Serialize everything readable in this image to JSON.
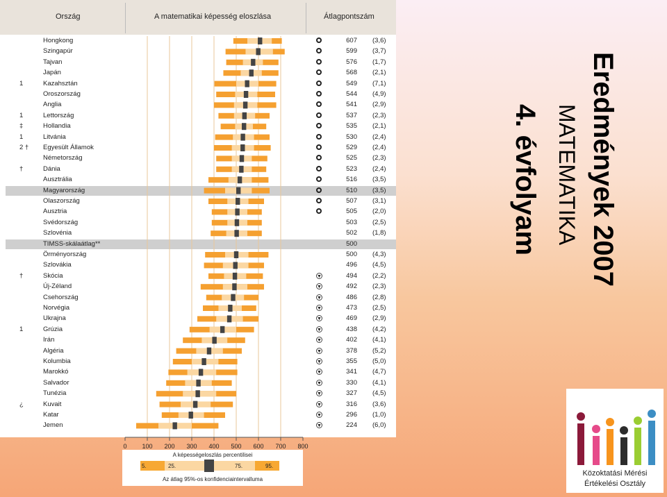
{
  "header": {
    "country": "Ország",
    "distribution": "A matematikai képesség eloszlása",
    "average": "Átlagpontszám"
  },
  "title": {
    "line1": "Eredmények 2007",
    "line2": "MATEMATIKA",
    "line3": "4. évfolyam"
  },
  "logo": {
    "line1": "Közoktatási Mérési",
    "line2": "Értékelési Osztály",
    "colors": [
      "#8b1a3a",
      "#e64a8a",
      "#f7941d",
      "#2c2c2c",
      "#9acd32",
      "#3c8ec4"
    ]
  },
  "legend": {
    "title": "A képességeloszlás percentilisei",
    "p5": "5.",
    "p25": "25.",
    "p75": "75.",
    "p95": "95.",
    "caption": "Az átlag 95%-os konfidenciaintervalluma"
  },
  "chart_data": {
    "type": "bar",
    "x_ticks": [
      "0",
      "100",
      "200",
      "300",
      "400",
      "500",
      "600",
      "700",
      "800"
    ],
    "xlim": [
      0,
      800
    ],
    "grid": true,
    "rows": [
      {
        "note": "",
        "country": "Hongkong",
        "score": "607",
        "se": "(3,6)",
        "sym": "up",
        "p": [
          487,
          550,
          660,
          705
        ]
      },
      {
        "note": "",
        "country": "Szingapúr",
        "score": "599",
        "se": "(3,7)",
        "sym": "up",
        "p": [
          452,
          542,
          665,
          718
        ]
      },
      {
        "note": "",
        "country": "Tajvan",
        "score": "576",
        "se": "(1,7)",
        "sym": "up",
        "p": [
          455,
          530,
          620,
          690
        ]
      },
      {
        "note": "",
        "country": "Japán",
        "score": "568",
        "se": "(2,1)",
        "sym": "up",
        "p": [
          442,
          520,
          615,
          690
        ]
      },
      {
        "note": "1",
        "country": "Kazahsztán",
        "score": "549",
        "se": "(7,1)",
        "sym": "up",
        "p": [
          402,
          500,
          600,
          680
        ]
      },
      {
        "note": "",
        "country": "Oroszország",
        "score": "544",
        "se": "(4,9)",
        "sym": "up",
        "p": [
          410,
          495,
          595,
          675
        ]
      },
      {
        "note": "",
        "country": "Anglia",
        "score": "541",
        "se": "(2,9)",
        "sym": "up",
        "p": [
          400,
          490,
          595,
          680
        ]
      },
      {
        "note": "1",
        "country": "Lettország",
        "score": "537",
        "se": "(2,3)",
        "sym": "up",
        "p": [
          420,
          490,
          585,
          650
        ]
      },
      {
        "note": "‡",
        "country": "Hollandia",
        "score": "535",
        "se": "(2,1)",
        "sym": "up",
        "p": [
          430,
          495,
          575,
          635
        ]
      },
      {
        "note": "1",
        "country": "Litvánia",
        "score": "530",
        "se": "(2,4)",
        "sym": "up",
        "p": [
          405,
          485,
          580,
          650
        ]
      },
      {
        "note": "2 †",
        "country": "Egyesült Államok",
        "score": "529",
        "se": "(2,4)",
        "sym": "up",
        "p": [
          400,
          480,
          580,
          655
        ]
      },
      {
        "note": "",
        "country": "Németország",
        "score": "525",
        "se": "(2,3)",
        "sym": "up",
        "p": [
          410,
          480,
          570,
          640
        ]
      },
      {
        "note": "†",
        "country": "Dánia",
        "score": "523",
        "se": "(2,4)",
        "sym": "up",
        "p": [
          410,
          480,
          570,
          635
        ]
      },
      {
        "note": "",
        "country": "Ausztrália",
        "score": "516",
        "se": "(3,5)",
        "sym": "up",
        "p": [
          375,
          465,
          570,
          645
        ]
      },
      {
        "note": "",
        "country": "Magyarország",
        "score": "510",
        "se": "(3,5)",
        "sym": "up",
        "hl": true,
        "p": [
          355,
          450,
          570,
          650
        ]
      },
      {
        "note": "",
        "country": "Olaszország",
        "score": "507",
        "se": "(3,1)",
        "sym": "up",
        "p": [
          375,
          460,
          555,
          625
        ]
      },
      {
        "note": "",
        "country": "Ausztria",
        "score": "505",
        "se": "(2,0)",
        "sym": "up",
        "p": [
          390,
          460,
          550,
          615
        ]
      },
      {
        "note": "",
        "country": "Svédország",
        "score": "503",
        "se": "(2,5)",
        "sym": "",
        "p": [
          390,
          460,
          550,
          615
        ]
      },
      {
        "note": "",
        "country": "Szlovénia",
        "score": "502",
        "se": "(1,8)",
        "sym": "",
        "p": [
          385,
          455,
          550,
          615
        ]
      },
      {
        "note": "",
        "country": "TIMSS-skálaátlag**",
        "score": "500",
        "se": "",
        "sym": "",
        "hl": true,
        "p": null
      },
      {
        "note": "",
        "country": "Örményország",
        "score": "500",
        "se": "(4,3)",
        "sym": "",
        "p": [
          360,
          450,
          555,
          645
        ]
      },
      {
        "note": "",
        "country": "Szlovákia",
        "score": "496",
        "se": "(4,5)",
        "sym": "",
        "p": [
          355,
          440,
          555,
          625
        ]
      },
      {
        "note": "†",
        "country": "Skócia",
        "score": "494",
        "se": "(2,2)",
        "sym": "down",
        "p": [
          375,
          445,
          545,
          620
        ]
      },
      {
        "note": "",
        "country": "Új-Zéland",
        "score": "492",
        "se": "(2,3)",
        "sym": "down",
        "p": [
          340,
          440,
          550,
          625
        ]
      },
      {
        "note": "",
        "country": "Csehország",
        "score": "486",
        "se": "(2,8)",
        "sym": "down",
        "p": [
          365,
          435,
          535,
          600
        ]
      },
      {
        "note": "",
        "country": "Norvégia",
        "score": "473",
        "se": "(2,5)",
        "sym": "down",
        "p": [
          350,
          420,
          525,
          590
        ]
      },
      {
        "note": "",
        "country": "Ukrajna",
        "score": "469",
        "se": "(2,9)",
        "sym": "down",
        "p": [
          325,
          410,
          530,
          600
        ]
      },
      {
        "note": "1",
        "country": "Grúzia",
        "score": "438",
        "se": "(4,2)",
        "sym": "down",
        "p": [
          290,
          380,
          500,
          580
        ]
      },
      {
        "note": "",
        "country": "Irán",
        "score": "402",
        "se": "(4,1)",
        "sym": "down",
        "p": [
          260,
          345,
          460,
          540
        ]
      },
      {
        "note": "",
        "country": "Algéria",
        "score": "378",
        "se": "(5,2)",
        "sym": "down",
        "p": [
          230,
          320,
          440,
          525
        ]
      },
      {
        "note": "",
        "country": "Kolumbia",
        "score": "355",
        "se": "(5,0)",
        "sym": "down",
        "p": [
          215,
          300,
          420,
          505
        ]
      },
      {
        "note": "",
        "country": "Marokkó",
        "score": "341",
        "se": "(4,7)",
        "sym": "down",
        "p": [
          195,
          280,
          410,
          505
        ]
      },
      {
        "note": "",
        "country": "Salvador",
        "score": "330",
        "se": "(4,1)",
        "sym": "down",
        "p": [
          185,
          270,
          390,
          480
        ]
      },
      {
        "note": "",
        "country": "Tunézia",
        "score": "327",
        "se": "(4,5)",
        "sym": "down",
        "p": [
          140,
          260,
          410,
          500
        ]
      },
      {
        "note": "¿",
        "country": "Kuvait",
        "score": "316",
        "se": "(3,6)",
        "sym": "down",
        "p": [
          155,
          250,
          385,
          485
        ]
      },
      {
        "note": "",
        "country": "Katar",
        "score": "296",
        "se": "(1,0)",
        "sym": "down",
        "p": [
          165,
          240,
          355,
          450
        ]
      },
      {
        "note": "",
        "country": "Jemen",
        "score": "224",
        "se": "(6,0)",
        "sym": "down",
        "p": [
          50,
          150,
          300,
          420
        ]
      }
    ]
  }
}
